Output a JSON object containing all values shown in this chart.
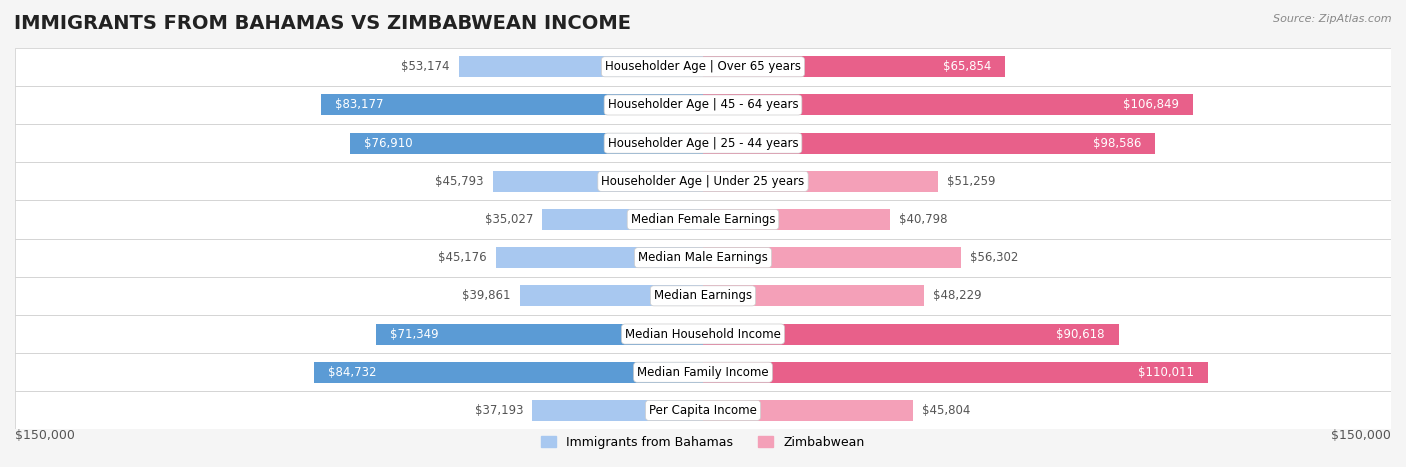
{
  "title": "IMMIGRANTS FROM BAHAMAS VS ZIMBABWEAN INCOME",
  "source": "Source: ZipAtlas.com",
  "categories": [
    "Per Capita Income",
    "Median Family Income",
    "Median Household Income",
    "Median Earnings",
    "Median Male Earnings",
    "Median Female Earnings",
    "Householder Age | Under 25 years",
    "Householder Age | 25 - 44 years",
    "Householder Age | 45 - 64 years",
    "Householder Age | Over 65 years"
  ],
  "bahamas_values": [
    37193,
    84732,
    71349,
    39861,
    45176,
    35027,
    45793,
    76910,
    83177,
    53174
  ],
  "zimbabwean_values": [
    45804,
    110011,
    90618,
    48229,
    56302,
    40798,
    51259,
    98586,
    106849,
    65854
  ],
  "bahamas_labels": [
    "$37,193",
    "$84,732",
    "$71,349",
    "$39,861",
    "$45,176",
    "$35,027",
    "$45,793",
    "$76,910",
    "$83,177",
    "$53,174"
  ],
  "zimbabwean_labels": [
    "$45,804",
    "$110,011",
    "$90,618",
    "$48,229",
    "$56,302",
    "$40,798",
    "$51,259",
    "$98,586",
    "$106,849",
    "$65,854"
  ],
  "bahamas_color_light": "#a8c8f0",
  "bahamas_color_dark": "#5b9bd5",
  "zimbabwean_color_light": "#f4a0b8",
  "zimbabwean_color_dark": "#e8608a",
  "max_value": 150000,
  "xlabel_left": "$150,000",
  "xlabel_right": "$150,000",
  "legend_bahamas": "Immigrants from Bahamas",
  "legend_zimbabwean": "Zimbabwean",
  "background_color": "#f5f5f5",
  "row_bg_color": "#ffffff",
  "title_fontsize": 14,
  "label_fontsize": 8.5,
  "category_fontsize": 8.5
}
